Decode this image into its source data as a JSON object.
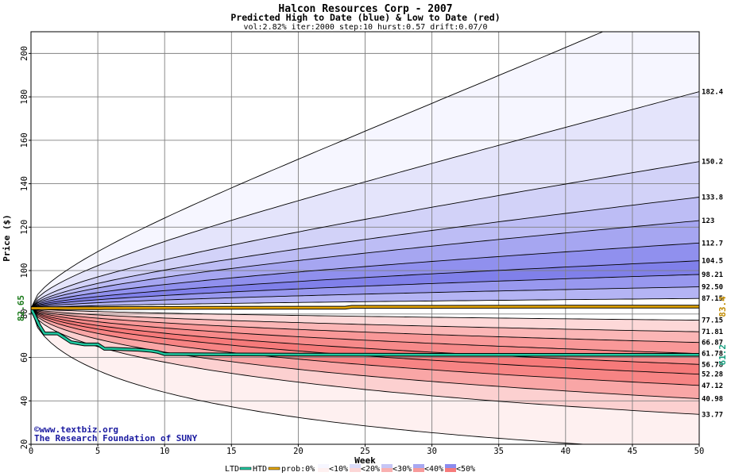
{
  "chart_data": {
    "type": "area",
    "title": "Halcon Resources Corp - 2007",
    "subtitle": "Predicted High to Date (blue) &  Low to Date (red)",
    "params": "vol:2.82% iter:2000 step:10 hurst:0.57 drift:0.07/0",
    "xlabel": "Week",
    "ylabel": "Price ($)",
    "xlim": [
      0,
      50
    ],
    "ylim": [
      20,
      210
    ],
    "xticks": [
      0,
      5,
      10,
      15,
      20,
      25,
      30,
      35,
      40,
      45,
      50
    ],
    "yticks": [
      20,
      40,
      60,
      80,
      100,
      120,
      140,
      160,
      180,
      200
    ],
    "grid": true,
    "start_price": 82.65,
    "start_label": "82.65",
    "htd_end_label": "83.4",
    "ltd_end_label": "61.2",
    "band_end_labels": [
      "182.4",
      "150.2",
      "133.8",
      "123",
      "112.7",
      "104.5",
      "98.21",
      "92.50",
      "87.15",
      "77.15",
      "71.81",
      "66.87",
      "61.78",
      "56.78",
      "52.28",
      "47.12",
      "40.98",
      "33.77"
    ],
    "high_quantiles": [
      {
        "end": 229.0,
        "unlabeled": true
      },
      {
        "end": 182.4
      },
      {
        "end": 150.2
      },
      {
        "end": 133.8
      },
      {
        "end": 123
      },
      {
        "end": 112.7
      },
      {
        "end": 104.5
      },
      {
        "end": 98.21
      },
      {
        "end": 92.5
      },
      {
        "end": 87.15
      }
    ],
    "low_quantiles": [
      {
        "end": 77.15
      },
      {
        "end": 71.81
      },
      {
        "end": 66.87
      },
      {
        "end": 61.78
      },
      {
        "end": 56.78
      },
      {
        "end": 52.28
      },
      {
        "end": 47.12
      },
      {
        "end": 40.98
      },
      {
        "end": 33.77
      },
      {
        "end": 17.0,
        "unlabeled": true
      }
    ],
    "htd_series": {
      "name": "HTD",
      "x": [
        0,
        0.5,
        1,
        5,
        5.5,
        10,
        20,
        23.5,
        24,
        30,
        40,
        50
      ],
      "y": [
        82.65,
        82.65,
        82.65,
        82.65,
        82.7,
        82.8,
        82.9,
        82.9,
        83.3,
        83.3,
        83.4,
        83.4
      ]
    },
    "ltd_series": {
      "name": "LTD",
      "x": [
        0,
        0.3,
        0.6,
        1,
        2,
        2.5,
        3,
        4,
        5,
        5.5,
        6,
        8,
        9,
        9.5,
        10,
        15,
        20,
        30,
        40,
        50
      ],
      "y": [
        82.65,
        79,
        75,
        71,
        71,
        69,
        67,
        66,
        66,
        64,
        64,
        63.5,
        63,
        62.5,
        61.5,
        61.4,
        61.3,
        61.2,
        61.2,
        61.2
      ]
    },
    "band_colors_high": [
      "#f6f6ff",
      "#e4e4fb",
      "#d2d2f8",
      "#bdbdf5",
      "#a6a6f1",
      "#9090ee",
      "#8080ea",
      "#9898ef",
      "#b4b4f4"
    ],
    "band_colors_low": [
      "#fdd8d8",
      "#fbb6b6",
      "#f99898",
      "#f78a8a",
      "#f67a7a",
      "#f78484",
      "#f9a6a6",
      "#fcd0d0",
      "#fef0f0"
    ],
    "htd_color": "#e8a800",
    "ltd_color": "#20c8a0",
    "legend": {
      "ltd": "LTD",
      "htd": "HTD",
      "prob": "prob:0%",
      "items": [
        "<10%",
        "<20%",
        "<30%",
        "<40%",
        "<50%"
      ],
      "item_colors": [
        "#f6f6ff",
        "#dcdcfa",
        "#c6c6f6",
        "#a8a8f2",
        "#8c8cee"
      ],
      "item_colors_low": [
        "#fef0f0",
        "#fcd6d6",
        "#f9b0b0",
        "#f79a9a",
        "#f67a7a"
      ]
    }
  },
  "watermark": {
    "line1": "©www.textbiz.org",
    "line2": "The Research Foundation of SUNY"
  }
}
